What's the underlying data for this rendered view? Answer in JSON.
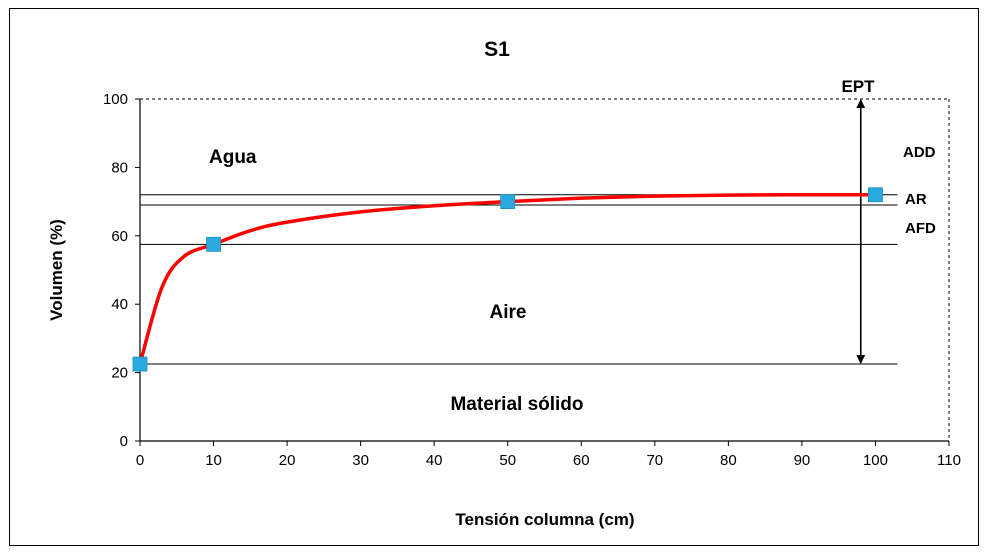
{
  "chart_data": {
    "type": "line",
    "title": "S1",
    "xlabel": "Tensión columna (cm)",
    "ylabel": "Volumen (%)",
    "xlim": [
      0,
      110
    ],
    "ylim": [
      0,
      100
    ],
    "xticks": [
      "0",
      "10",
      "20",
      "30",
      "40",
      "50",
      "60",
      "70",
      "80",
      "90",
      "100",
      "110"
    ],
    "yticks": [
      "0",
      "20",
      "40",
      "60",
      "80",
      "100"
    ],
    "grid": false,
    "series": [
      {
        "type": "scatter",
        "color": "#29a9e0",
        "marker": "square",
        "x": [
          0,
          10,
          50,
          100
        ],
        "y": [
          22.5,
          57.5,
          70,
          72
        ]
      },
      {
        "type": "line",
        "color": "#ff0000",
        "smooth": true,
        "x": [
          0,
          3,
          6,
          10,
          15,
          20,
          30,
          40,
          50,
          60,
          70,
          80,
          90,
          100
        ],
        "y": [
          22.5,
          45,
          54,
          57.5,
          61.5,
          64,
          67,
          68.8,
          70,
          71,
          71.6,
          71.9,
          72,
          72
        ]
      }
    ],
    "reference_lines": [
      {
        "y": 22.5,
        "x_end": 103
      },
      {
        "y": 57.5,
        "x_end": 103
      },
      {
        "y": 69,
        "x_end": 103
      },
      {
        "y": 72,
        "x_end": 103
      }
    ],
    "dashed_box": {
      "x": [
        0,
        110
      ],
      "y": [
        0,
        100
      ]
    },
    "ept_arrow": {
      "x": 98,
      "y_from": 22.5,
      "y_to": 100
    },
    "annotations": {
      "ept": "EPT",
      "add": "ADD",
      "ar": "AR",
      "afd": "AFD",
      "agua": "Agua",
      "aire": "Aire",
      "material_solido": "Material sólido"
    }
  }
}
